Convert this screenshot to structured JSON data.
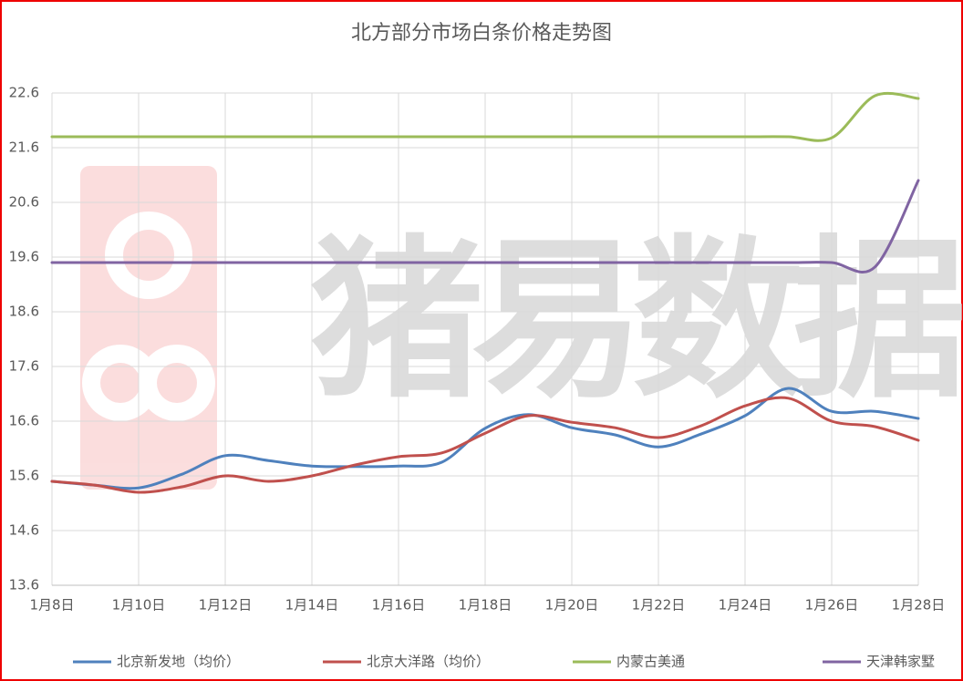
{
  "chart_data": {
    "type": "line",
    "title": "北方部分市场白条价格走势图",
    "watermark": "猪易数据",
    "categories": [
      "1月8日",
      null,
      "1月10日",
      null,
      "1月12日",
      null,
      "1月14日",
      null,
      "1月16日",
      null,
      "1月18日",
      null,
      "1月20日",
      null,
      "1月22日",
      null,
      "1月24日",
      null,
      "1月26日",
      null,
      "1月28日"
    ],
    "ylim": [
      13.6,
      22.6
    ],
    "yticks": [
      13.6,
      14.6,
      15.6,
      16.6,
      17.6,
      18.6,
      19.6,
      20.6,
      21.6,
      22.6
    ],
    "grid": true,
    "smooth": true,
    "legend": "bottom",
    "series": [
      {
        "name": "北京新发地（均价）",
        "color": "#4f81bd",
        "values": [
          15.5,
          15.43,
          15.38,
          15.63,
          15.97,
          15.88,
          15.78,
          15.77,
          15.78,
          15.85,
          16.47,
          16.72,
          16.48,
          16.35,
          16.13,
          16.37,
          16.7,
          17.2,
          16.78,
          16.78,
          16.65
        ]
      },
      {
        "name": "北京大洋路（均价）",
        "color": "#c0504d",
        "values": [
          15.5,
          15.43,
          15.3,
          15.4,
          15.6,
          15.5,
          15.6,
          15.8,
          15.95,
          16.02,
          16.38,
          16.7,
          16.58,
          16.48,
          16.3,
          16.52,
          16.88,
          17.02,
          16.6,
          16.5,
          16.25
        ]
      },
      {
        "name": "内蒙古美通",
        "color": "#9bbb59",
        "values": [
          21.8,
          21.8,
          21.8,
          21.8,
          21.8,
          21.8,
          21.8,
          21.8,
          21.8,
          21.8,
          21.8,
          21.8,
          21.8,
          21.8,
          21.8,
          21.8,
          21.8,
          21.8,
          21.78,
          22.55,
          22.5
        ]
      },
      {
        "name": "天津韩家墅",
        "color": "#8064a2",
        "values": [
          19.5,
          19.5,
          19.5,
          19.5,
          19.5,
          19.5,
          19.5,
          19.5,
          19.5,
          19.5,
          19.5,
          19.5,
          19.5,
          19.5,
          19.5,
          19.5,
          19.5,
          19.5,
          19.5,
          19.42,
          21.0
        ]
      }
    ]
  }
}
